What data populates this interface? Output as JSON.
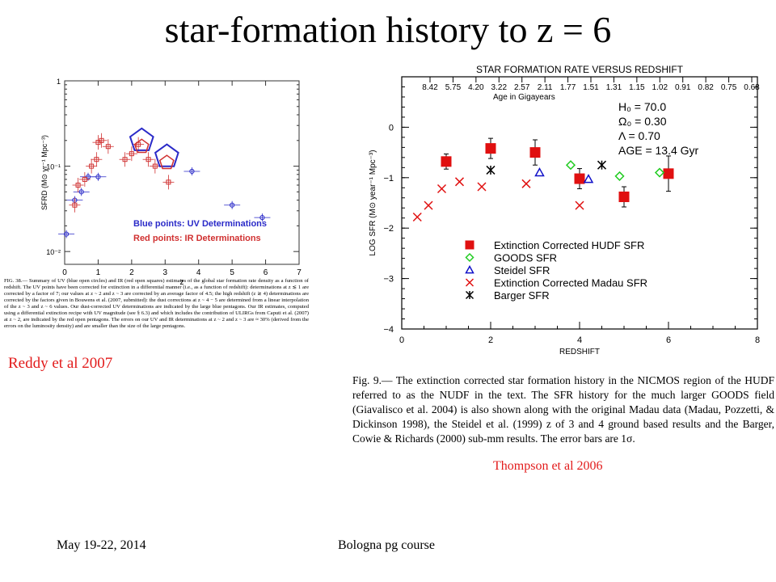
{
  "slide": {
    "title": "star-formation history to z = 6",
    "footer_left": "May 19-22, 2014",
    "footer_center": "Bologna pg course",
    "credit_left": "Reddy et al 2007",
    "credit_right": "Thompson et al 2006"
  },
  "left_caption": "FIG. 38.— Summary of UV (blue open circles) and IR (red open squares) estimates of the global star formation rate density as a function of redshift. The UV points have been corrected for extinction in a differential manner (i.e., as a function of redshift): determinations at z ≲ 1 are corrected by a factor of 7; our values at z ~ 2 and z ~ 3 are corrected by an average factor of 4.5; the high redshift (z ≳ 4) determinations are corrected by the factors given in Bouwens et al. (2007, submitted): the dust corrections at z ~ 4 − 5 are determined from a linear interpolation of the z ~ 3 and z ~ 6 values. Our dust-corrected UV determinations are indicated by the large blue pentagons. Our IR estimates, computed using a differential extinction recipe with UV magnitude (see § 6.3) and which includes the contribution of ULIRGs from Caputi et al. (2007) at z ~ 2, are indicated by the red open pentagons. The errors on our UV and IR determinations at z ~ 2 and z ~ 3 are ≈ 30% (derived from the errors on the luminosity density) and are smaller than the size of the large pentagons.",
  "right_caption": "Fig.   9.— The extinction corrected star formation history in the NICMOS region of the HUDF referred to as the NUDF in the text. The SFR history for the much larger GOODS field (Giavalisco et al. 2004) is also shown along with the original Madau data (Madau, Pozzetti, & Dickinson 1998), the Steidel et al. (1999) z of 3 and 4 ground based results and the Barger, Cowie & Richards (2000) sub-mm results. The error bars are 1σ.",
  "chart_data": [
    {
      "type": "scatter",
      "xlabel": "z",
      "ylabel": "SFRD (M⊙ yr⁻¹ Mpc⁻³)",
      "xlim": [
        0,
        7
      ],
      "ylim_log10": [
        -2.15,
        0
      ],
      "yscale": "log",
      "x_ticks": [
        "0",
        "1",
        "2",
        "3",
        "4",
        "5",
        "6",
        "7"
      ],
      "y_ticks": [
        "1",
        "10⁻¹",
        "10⁻²"
      ],
      "legend": [
        "Blue points: UV Determinations",
        "Red points: IR Determinations"
      ],
      "legend_placement": "bottom-right",
      "colors": {
        "uv": "#2a2ac8",
        "ir": "#d03030"
      },
      "series": [
        {
          "marker": "blue-circle",
          "x": [
            0.05,
            0.3,
            0.5,
            0.7,
            1.0,
            3.8,
            5.0,
            5.9
          ],
          "y": [
            0.016,
            0.04,
            0.05,
            0.075,
            0.075,
            0.087,
            0.035,
            0.025
          ]
        },
        {
          "marker": "red-square",
          "x": [
            0.3,
            0.4,
            0.6,
            0.8,
            0.95,
            1.0,
            1.1,
            1.3,
            1.8,
            2.0,
            2.2,
            2.5,
            2.7,
            3.1
          ],
          "y": [
            0.035,
            0.06,
            0.07,
            0.1,
            0.12,
            0.19,
            0.2,
            0.17,
            0.12,
            0.14,
            0.18,
            0.12,
            0.1,
            0.065
          ]
        },
        {
          "marker": "blue-pentagon-large",
          "x": [
            2.3,
            3.05
          ],
          "y": [
            0.2,
            0.13
          ]
        },
        {
          "marker": "red-pentagon",
          "x": [
            2.3,
            3.05
          ],
          "y": [
            0.17,
            0.11
          ]
        }
      ]
    },
    {
      "type": "scatter",
      "title": "STAR FORMATION RATE VERSUS REDSHIFT",
      "xlabel": "REDSHIFT",
      "ylabel": "LOG SFR (M⊙ year⁻¹ Mpc⁻³)",
      "xlim": [
        0,
        8
      ],
      "ylim": [
        -4,
        1
      ],
      "x_ticks": [
        "0",
        "2",
        "4",
        "6",
        "8"
      ],
      "y_ticks": [
        "0",
        "−1",
        "−2",
        "−3",
        "−4"
      ],
      "top_axis_label": "Age in Gigayears",
      "top_ticks": [
        "8.42",
        "5.75",
        "4.20",
        "3.22",
        "2.57",
        "2.11",
        "1.77",
        "1.51",
        "1.31",
        "1.15",
        "1.02",
        "0.91",
        "0.82",
        "0.75",
        "0.68"
      ],
      "cosmology": [
        "H₀ = 70.0",
        "Ω₀ = 0.30",
        "Λ = 0.70",
        "AGE = 13.4 Gyr"
      ],
      "legend_placement": "bottom-center",
      "series": [
        {
          "name": "Extinction Corrected HUDF SFR",
          "marker": "filled-square",
          "color": "#e01010",
          "x": [
            1.0,
            2.0,
            3.0,
            4.0,
            5.0,
            6.0
          ],
          "y": [
            -0.68,
            -0.42,
            -0.5,
            -1.02,
            -1.38,
            -0.92
          ]
        },
        {
          "name": "GOODS SFR",
          "marker": "diamond",
          "color": "#22cc22",
          "x": [
            3.8,
            4.9,
            5.8
          ],
          "y": [
            -0.75,
            -0.97,
            -0.9
          ]
        },
        {
          "name": "Steidel SFR",
          "marker": "triangle",
          "color": "#1010c8",
          "x": [
            3.1,
            4.2
          ],
          "y": [
            -0.9,
            -1.03
          ]
        },
        {
          "name": "Extinction Corrected Madau SFR",
          "marker": "x",
          "color": "#e01010",
          "x": [
            0.35,
            0.6,
            0.9,
            1.3,
            1.8,
            2.8,
            4.0
          ],
          "y": [
            -1.78,
            -1.55,
            -1.22,
            -1.08,
            -1.18,
            -1.12,
            -1.55
          ]
        },
        {
          "name": "Barger SFR",
          "marker": "star",
          "color": "#000000",
          "x": [
            2.0,
            4.5
          ],
          "y": [
            -0.85,
            -0.75
          ]
        }
      ]
    }
  ]
}
